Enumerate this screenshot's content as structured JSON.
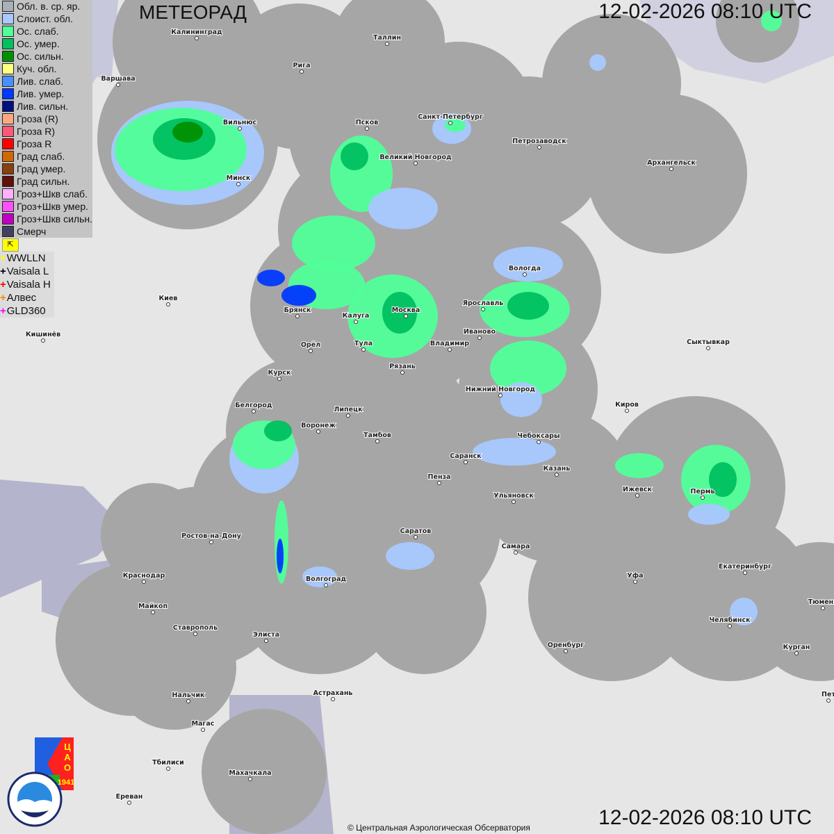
{
  "header": {
    "title": "МЕТЕОРАД",
    "timestamp": "12-02-2026  08:10 UTC"
  },
  "footer": {
    "timestamp": "12-02-2026  08:10 UTC",
    "credit": "© Центральная Аэрологическая Обсерватория"
  },
  "legend": {
    "items": [
      {
        "label": "Обл. в. ср. яр.",
        "color": "#a8b0b8"
      },
      {
        "label": "Слоист. обл.",
        "color": "#a8c8ff"
      },
      {
        "label": "Ос. слаб.",
        "color": "#50ff98"
      },
      {
        "label": "Ос. умер.",
        "color": "#00c060"
      },
      {
        "label": "Ос. сильн.",
        "color": "#009000"
      },
      {
        "label": "Куч. обл.",
        "color": "#ffff80"
      },
      {
        "label": "Лив. слаб.",
        "color": "#4890ff"
      },
      {
        "label": "Лив. умер.",
        "color": "#0038ff"
      },
      {
        "label": "Лив. сильн.",
        "color": "#001080"
      },
      {
        "label": "Гроза (R)",
        "color": "#ffa880"
      },
      {
        "label": "Гроза R)",
        "color": "#ff5878"
      },
      {
        "label": "Гроза R",
        "color": "#ff0000"
      },
      {
        "label": "Град слаб.",
        "color": "#d06800"
      },
      {
        "label": "Град умер.",
        "color": "#884010"
      },
      {
        "label": "Град сильн.",
        "color": "#601008"
      },
      {
        "label": "Гроз+Шкв слаб.",
        "color": "#ffb0ff"
      },
      {
        "label": "Гроз+Шкв умер.",
        "color": "#ff50ff"
      },
      {
        "label": "Гроз+Шкв сильн.",
        "color": "#c000c0"
      },
      {
        "label": "Смерч",
        "color": "#404060"
      }
    ],
    "lightning_toggle_icon": "lightning-flag-icon",
    "lightning_sources": [
      {
        "label": "WWLLN",
        "color": "#ffff00"
      },
      {
        "label": "Vaisala L",
        "color": "#000000"
      },
      {
        "label": "Vaisala H",
        "color": "#ff0000"
      },
      {
        "label": "Алвес",
        "color": "#ff8000"
      },
      {
        "label": "GLD360",
        "color": "#ff00ff"
      }
    ]
  },
  "cities": [
    "Калининград",
    "Таллин",
    "Рига",
    "Варшава",
    "Псков",
    "Санкт-Петербург",
    "Петрозаводск",
    "Архангельск",
    "Вильнюс",
    "Великий Новгород",
    "Минск",
    "Вологда",
    "Ярославль",
    "Киев",
    "Брянск",
    "Калуга",
    "Москва",
    "Иваново",
    "Владимир",
    "Кишинёв",
    "Орёл",
    "Тула",
    "Рязань",
    "Сыктывкар",
    "Курск",
    "Нижний Новгород",
    "Белгород",
    "Липецк",
    "Киров",
    "Воронеж",
    "Тамбов",
    "Чебоксары",
    "Саранск",
    "Казань",
    "Пенза",
    "Ижевск",
    "Пермь",
    "Ульяновск",
    "Саратов",
    "Ростов-на-Дону",
    "Самара",
    "Краснодар",
    "Уфа",
    "Волгоград",
    "Екатеринбург",
    "Тюмень",
    "Майкоп",
    "Челябинск",
    "Ставрополь",
    "Элиста",
    "Оренбург",
    "Курган",
    "Нальчик",
    "Астрахань",
    "Пет",
    "Магас",
    "Тбилиси",
    "Махачкала",
    "Ереван"
  ],
  "logos": {
    "cao": "ЦАО 1941",
    "roshydromet": "РОСГИДРОМЕТ ROSHYDROMET"
  },
  "colors": {
    "coverage": "#a6a6a6",
    "land": "#e6e6e6",
    "sea": "#b4b4cc"
  }
}
